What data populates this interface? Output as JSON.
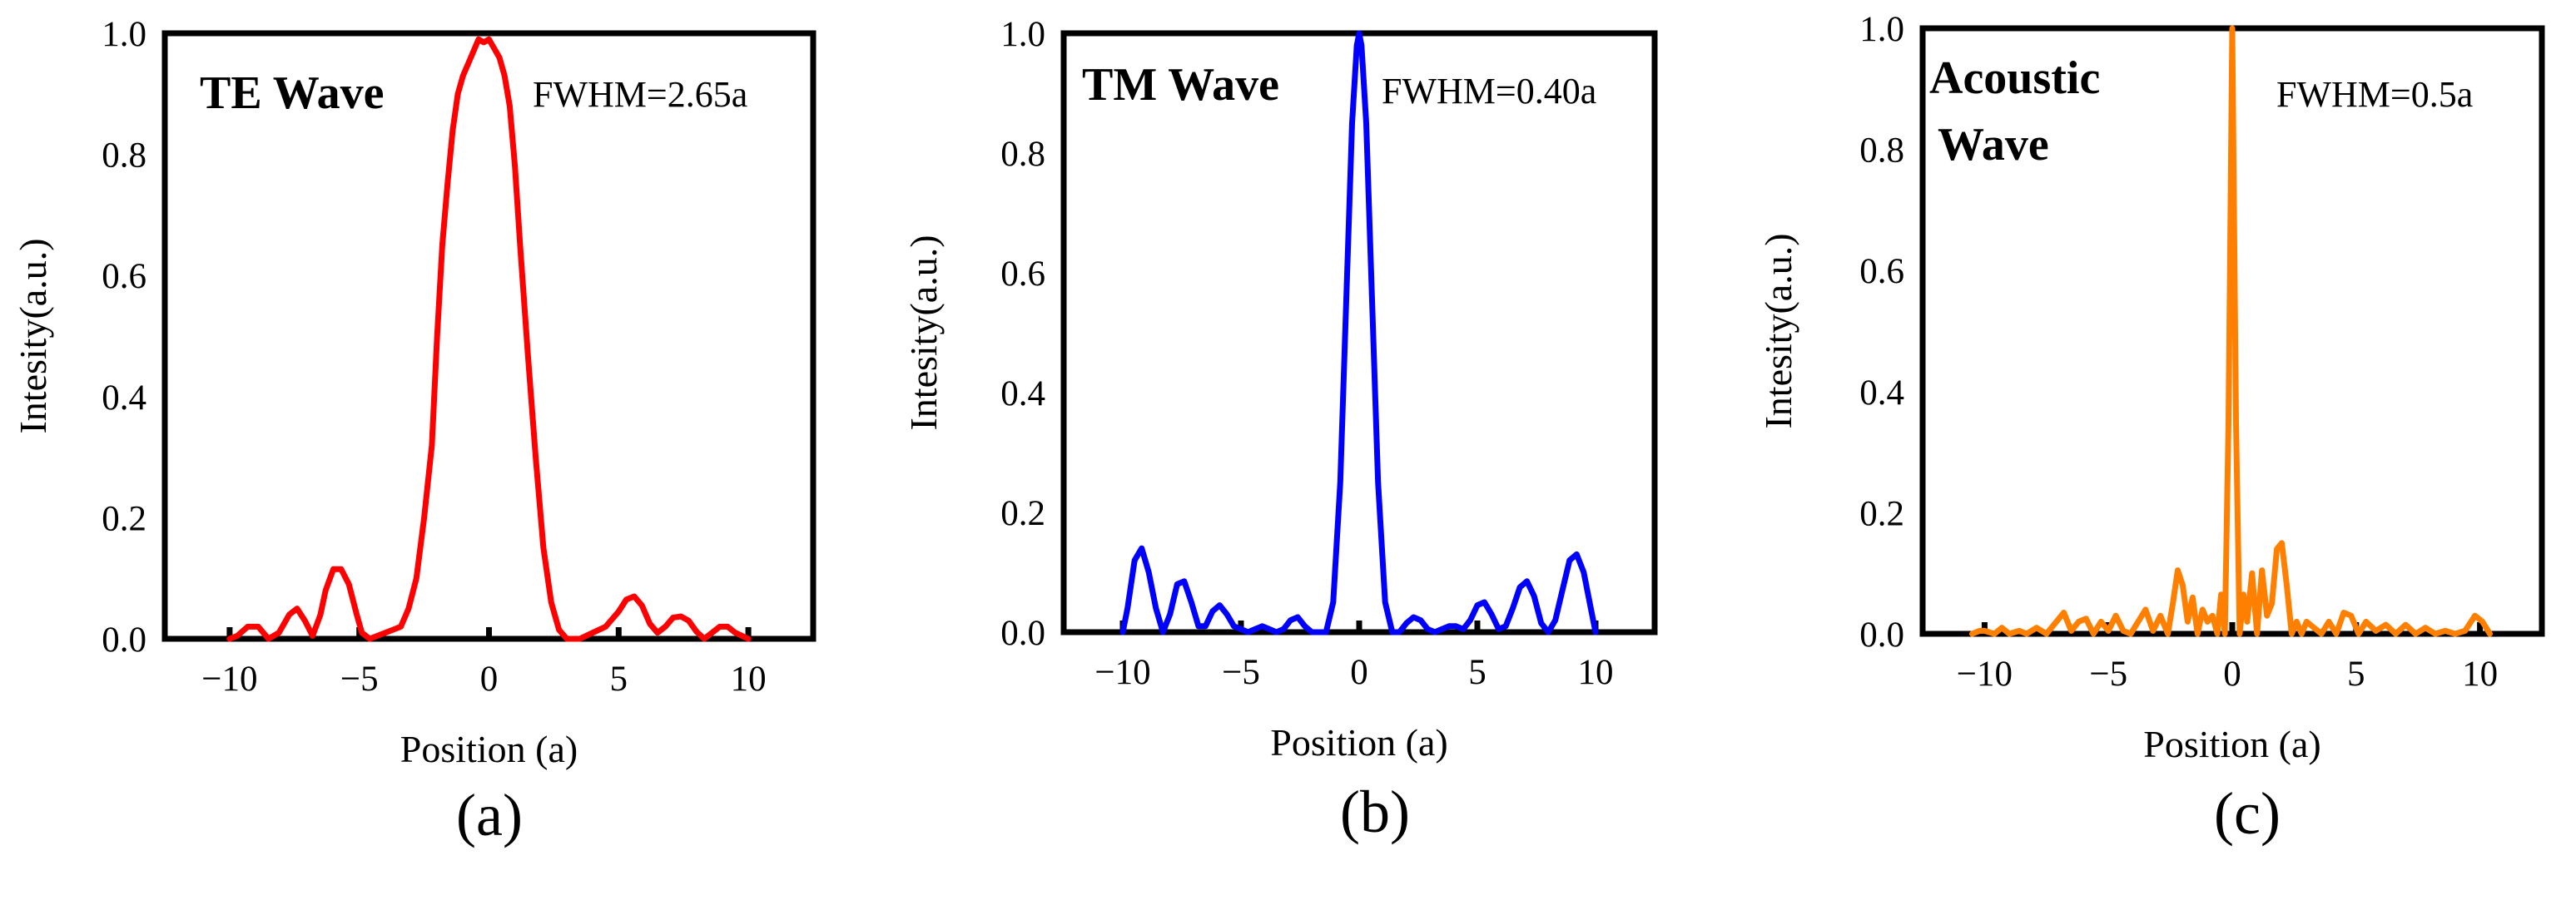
{
  "figure": {
    "captions": [
      "(a)",
      "(b)",
      "(c)"
    ]
  },
  "chart_data": [
    {
      "type": "line",
      "title": "TE Wave",
      "annotation": "FWHM=2.65a",
      "xlabel": "Position (a)",
      "ylabel": "Intesity(a.u.)",
      "xlim": [
        -12.5,
        12.5
      ],
      "ylim": [
        0,
        1
      ],
      "xticks": [
        -10,
        -5,
        0,
        5,
        10
      ],
      "xtick_labels": [
        "−10",
        "−5",
        "0",
        "5",
        "10"
      ],
      "yticks": [
        0,
        0.2,
        0.4,
        0.6,
        0.8,
        1.0
      ],
      "ytick_labels": [
        "0.0",
        "0.2",
        "0.4",
        "0.6",
        "0.8",
        "1.0"
      ],
      "series": [
        {
          "name": "TE Wave",
          "color": "#ff0000",
          "x": [
            -10,
            -9.7,
            -9.3,
            -8.9,
            -8.5,
            -8.1,
            -7.7,
            -7.4,
            -7.1,
            -6.8,
            -6.5,
            -6.3,
            -6.0,
            -5.7,
            -5.4,
            -5.1,
            -4.9,
            -4.6,
            -4.3,
            -4.0,
            -3.7,
            -3.4,
            -3.1,
            -2.8,
            -2.5,
            -2.2,
            -2.0,
            -1.8,
            -1.6,
            -1.4,
            -1.2,
            -1.0,
            -0.8,
            -0.6,
            -0.4,
            -0.2,
            0.0,
            0.2,
            0.4,
            0.6,
            0.8,
            1.0,
            1.2,
            1.5,
            1.8,
            2.1,
            2.4,
            2.7,
            3.0,
            3.5,
            4.0,
            4.5,
            5.0,
            5.3,
            5.6,
            5.9,
            6.2,
            6.5,
            6.8,
            7.1,
            7.4,
            7.7,
            8.0,
            8.3,
            8.6,
            8.9,
            9.2,
            9.5,
            10.0
          ],
          "y": [
            0.0,
            0.005,
            0.02,
            0.02,
            0.0,
            0.01,
            0.04,
            0.05,
            0.03,
            0.005,
            0.04,
            0.08,
            0.115,
            0.115,
            0.09,
            0.04,
            0.01,
            0.0,
            0.005,
            0.01,
            0.015,
            0.02,
            0.05,
            0.1,
            0.2,
            0.32,
            0.5,
            0.65,
            0.75,
            0.84,
            0.9,
            0.93,
            0.95,
            0.97,
            0.99,
            0.985,
            0.99,
            0.975,
            0.96,
            0.93,
            0.88,
            0.78,
            0.65,
            0.47,
            0.3,
            0.15,
            0.06,
            0.015,
            0.0,
            0.0,
            0.01,
            0.02,
            0.045,
            0.065,
            0.07,
            0.055,
            0.025,
            0.01,
            0.02,
            0.035,
            0.037,
            0.03,
            0.012,
            0.0,
            0.01,
            0.02,
            0.02,
            0.01,
            0.0
          ]
        }
      ]
    },
    {
      "type": "line",
      "title": "TM Wave",
      "annotation": "FWHM=0.40a",
      "xlabel": "Position (a)",
      "ylabel": "Intesity(a.u.)",
      "xlim": [
        -12.5,
        12.5
      ],
      "ylim": [
        0,
        1
      ],
      "xticks": [
        -10,
        -5,
        0,
        5,
        10
      ],
      "xtick_labels": [
        "−10",
        "−5",
        "0",
        "5",
        "10"
      ],
      "yticks": [
        0,
        0.2,
        0.4,
        0.6,
        0.8,
        1.0
      ],
      "ytick_labels": [
        "0.0",
        "0.2",
        "0.4",
        "0.6",
        "0.8",
        "1.0"
      ],
      "series": [
        {
          "name": "TM Wave",
          "color": "#0000ff",
          "x": [
            -10,
            -9.8,
            -9.5,
            -9.2,
            -8.9,
            -8.6,
            -8.3,
            -8.0,
            -7.7,
            -7.4,
            -7.1,
            -6.8,
            -6.5,
            -6.2,
            -5.9,
            -5.6,
            -5.3,
            -5.0,
            -4.7,
            -4.4,
            -4.1,
            -3.8,
            -3.5,
            -3.2,
            -2.9,
            -2.6,
            -2.3,
            -2.0,
            -1.7,
            -1.4,
            -1.1,
            -0.8,
            -0.55,
            -0.3,
            -0.1,
            0.0,
            0.1,
            0.3,
            0.55,
            0.8,
            1.1,
            1.4,
            1.7,
            2.0,
            2.3,
            2.6,
            2.9,
            3.2,
            3.5,
            3.8,
            4.1,
            4.4,
            4.7,
            5.0,
            5.3,
            5.6,
            5.9,
            6.2,
            6.5,
            6.8,
            7.1,
            7.4,
            7.7,
            8.0,
            8.3,
            8.6,
            8.9,
            9.2,
            9.5,
            9.8,
            10.0
          ],
          "y": [
            0.0,
            0.04,
            0.12,
            0.14,
            0.1,
            0.04,
            0.0,
            0.03,
            0.08,
            0.085,
            0.05,
            0.01,
            0.01,
            0.035,
            0.045,
            0.03,
            0.01,
            0.005,
            0.0,
            0.005,
            0.01,
            0.005,
            0.0,
            0.005,
            0.02,
            0.025,
            0.01,
            0.0,
            0.0,
            0.0,
            0.05,
            0.25,
            0.55,
            0.85,
            0.98,
            1.0,
            0.98,
            0.85,
            0.55,
            0.25,
            0.05,
            0.0,
            0.0,
            0.015,
            0.025,
            0.02,
            0.005,
            0.0,
            0.005,
            0.01,
            0.01,
            0.005,
            0.02,
            0.045,
            0.05,
            0.03,
            0.005,
            0.01,
            0.04,
            0.075,
            0.085,
            0.06,
            0.015,
            0.0,
            0.02,
            0.07,
            0.12,
            0.13,
            0.1,
            0.04,
            0.0
          ]
        }
      ]
    },
    {
      "type": "line",
      "title": "Acoustic Wave",
      "annotation": "FWHM=0.5a",
      "xlabel": "Position (a)",
      "ylabel": "Intesity(a.u.)",
      "xlim": [
        -12.5,
        12.5
      ],
      "ylim": [
        0,
        1
      ],
      "xticks": [
        -10,
        -5,
        0,
        5,
        10
      ],
      "xtick_labels": [
        "−10",
        "−5",
        "0",
        "5",
        "10"
      ],
      "yticks": [
        0,
        0.2,
        0.4,
        0.6,
        0.8,
        1.0
      ],
      "ytick_labels": [
        "0.0",
        "0.2",
        "0.4",
        "0.6",
        "0.8",
        "1.0"
      ],
      "series": [
        {
          "name": "Acoustic Wave",
          "color": "#ff8000",
          "x": [
            -10.5,
            -10.2,
            -10.0,
            -9.6,
            -9.3,
            -9.0,
            -8.6,
            -8.3,
            -7.9,
            -7.5,
            -7.1,
            -6.8,
            -6.5,
            -6.2,
            -5.9,
            -5.6,
            -5.3,
            -5.0,
            -4.7,
            -4.4,
            -4.1,
            -3.8,
            -3.5,
            -3.2,
            -2.9,
            -2.6,
            -2.4,
            -2.2,
            -2.0,
            -1.8,
            -1.6,
            -1.4,
            -1.2,
            -1.0,
            -0.8,
            -0.6,
            -0.45,
            -0.3,
            -0.15,
            0.0,
            0.15,
            0.3,
            0.45,
            0.6,
            0.8,
            1.0,
            1.2,
            1.4,
            1.6,
            1.8,
            2.0,
            2.2,
            2.4,
            2.6,
            2.8,
            3.0,
            3.3,
            3.6,
            3.9,
            4.2,
            4.5,
            4.8,
            5.1,
            5.4,
            5.8,
            6.2,
            6.6,
            7.0,
            7.4,
            7.8,
            8.2,
            8.6,
            9.0,
            9.4,
            9.8,
            10.1,
            10.4
          ],
          "y": [
            0.0,
            0.005,
            0.005,
            0.0,
            0.01,
            0.0,
            0.005,
            0.0,
            0.01,
            0.0,
            0.02,
            0.035,
            0.005,
            0.02,
            0.025,
            0.0,
            0.02,
            0.005,
            0.03,
            0.005,
            0.0,
            0.02,
            0.04,
            0.005,
            0.03,
            0.0,
            0.05,
            0.105,
            0.08,
            0.02,
            0.06,
            0.0,
            0.04,
            0.02,
            0.03,
            0.0,
            0.065,
            0.0,
            0.35,
            1.0,
            0.35,
            0.0,
            0.065,
            0.02,
            0.1,
            0.0,
            0.105,
            0.03,
            0.05,
            0.14,
            0.15,
            0.08,
            0.0,
            0.02,
            0.0,
            0.02,
            0.01,
            0.0,
            0.02,
            0.0,
            0.035,
            0.03,
            0.0,
            0.02,
            0.005,
            0.015,
            0.0,
            0.015,
            0.0,
            0.01,
            0.0,
            0.005,
            0.0,
            0.005,
            0.03,
            0.02,
            0.0
          ]
        }
      ]
    }
  ]
}
